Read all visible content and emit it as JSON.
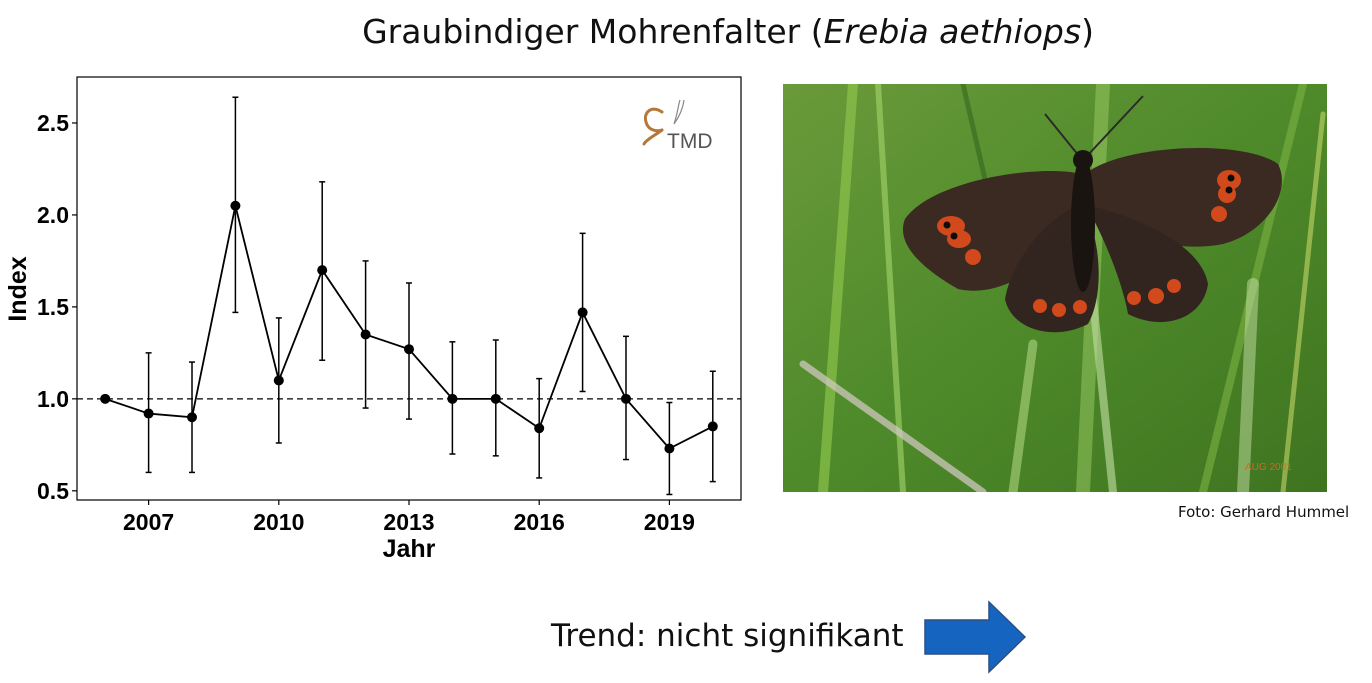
{
  "title": {
    "main": "Graubindiger Mohrenfalter (",
    "species": "Erebia aethiops",
    "close": ")"
  },
  "chart_data": {
    "type": "line",
    "title": "",
    "xlabel": "Jahr",
    "ylabel": "Index",
    "xlim": [
      2005.35,
      2020.65
    ],
    "ylim": [
      0.45,
      2.75
    ],
    "xticks": [
      2007,
      2010,
      2013,
      2016,
      2019
    ],
    "yticks": [
      0.5,
      1.0,
      1.5,
      2.0,
      2.5
    ],
    "ytick_labels": [
      "0.5",
      "1.0",
      "1.5",
      "2.0",
      "2.5"
    ],
    "reference_line": 1.0,
    "series": [
      {
        "x": [
          2006,
          2007,
          2008,
          2009,
          2010,
          2011,
          2012,
          2013,
          2014,
          2015,
          2016,
          2017,
          2018,
          2019,
          2020
        ],
        "y": [
          1.0,
          0.92,
          0.9,
          2.05,
          1.1,
          1.7,
          1.35,
          1.27,
          1.0,
          1.0,
          0.84,
          1.47,
          1.0,
          0.73,
          0.85
        ],
        "lower": [
          1.0,
          0.6,
          0.6,
          1.47,
          0.76,
          1.21,
          0.95,
          0.89,
          0.7,
          0.69,
          0.57,
          1.04,
          0.67,
          0.48,
          0.55
        ],
        "upper": [
          1.0,
          1.25,
          1.2,
          2.64,
          1.44,
          2.18,
          1.75,
          1.63,
          1.31,
          1.32,
          1.11,
          1.9,
          1.34,
          0.98,
          1.15
        ]
      }
    ],
    "grid": false,
    "logo_text": "TMD",
    "colors": {
      "line": "#000000",
      "logo": "#b5783a",
      "logo_text": "#555555"
    }
  },
  "photo": {
    "credit": "Foto: Gerhard Hummel",
    "date_stamp": "AUG 2001",
    "colors": {
      "background": "#4e8a2a",
      "wing": "#3a2a22",
      "spot": "#d2491c"
    }
  },
  "trend": {
    "text": "Trend: nicht signifikant",
    "arrow_icon": "arrow-right-icon",
    "colors": {
      "arrow_fill": "#1565c0",
      "arrow_stroke": "#2f4f7f"
    }
  }
}
